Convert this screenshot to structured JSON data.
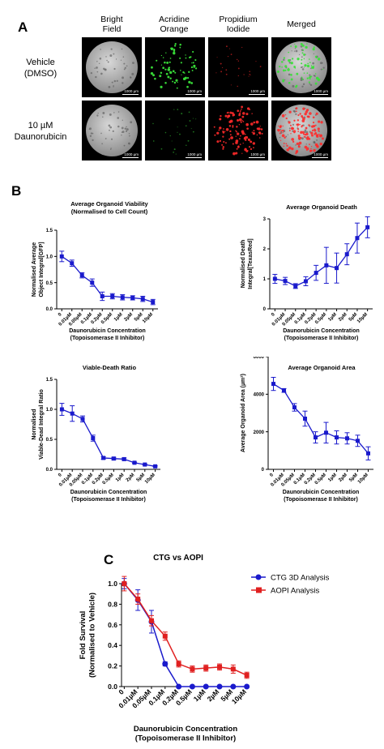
{
  "panel_a": {
    "letter": "A",
    "columns": [
      "Bright\nField",
      "Acridine\nOrange",
      "Propidium\nIodide",
      "Merged"
    ],
    "rows": [
      "Vehicle\n(DMSO)",
      "10 µM\nDaunorubicin"
    ],
    "scale_label": "1000 µm"
  },
  "panel_b": {
    "letter": "B"
  },
  "panel_c": {
    "letter": "C"
  },
  "chart_data": [
    {
      "id": "viability",
      "type": "line",
      "title": "Average Organoid Viability\n(Normalised to Cell Count)",
      "ylabel": "Normalised Average\nObject Integral[GFP]",
      "xlabel": "Daunorubicin Concentration\n(Topoisomerase II Inhibitor)",
      "categories": [
        "0",
        "0.01µM",
        "0.05µM",
        "0.1µM",
        "0.2µM",
        "0.5µM",
        "1µM",
        "2µM",
        "5µM",
        "10µM"
      ],
      "ylim": [
        0,
        1.5
      ],
      "yticks": [
        "0.0",
        "0.5",
        "1.0",
        "1.5"
      ],
      "color": "#1a1acc",
      "series": [
        {
          "values": [
            1.0,
            0.87,
            0.64,
            0.5,
            0.24,
            0.24,
            0.22,
            0.21,
            0.19,
            0.13
          ],
          "errors": [
            0.1,
            0.06,
            0.05,
            0.07,
            0.08,
            0.05,
            0.05,
            0.04,
            0.05,
            0.05
          ]
        }
      ]
    },
    {
      "id": "death",
      "type": "line",
      "title": "Average Organoid Death",
      "ylabel": "Normalised Death\nIntegral[TexasRed]",
      "xlabel": "Daunorubicin Concentration\n(Topoisomerase II Inhibitor)",
      "categories": [
        "0",
        "0.01µM",
        "0.05µM",
        "0.1µM",
        "0.2µM",
        "0.5µM",
        "1µM",
        "2µM",
        "5µM",
        "10µM"
      ],
      "ylim": [
        0,
        3
      ],
      "yticks": [
        "0",
        "1",
        "2",
        "3"
      ],
      "color": "#1a1acc",
      "series": [
        {
          "values": [
            1.0,
            0.93,
            0.76,
            0.92,
            1.2,
            1.45,
            1.36,
            1.82,
            2.36,
            2.72
          ],
          "errors": [
            0.15,
            0.12,
            0.08,
            0.15,
            0.25,
            0.6,
            0.5,
            0.35,
            0.5,
            0.35
          ]
        }
      ]
    },
    {
      "id": "ratio",
      "type": "line",
      "title": "Viable-Death Ratio",
      "ylabel": "Normalised\nViable-Dead Integral Ratio",
      "xlabel": "Daunorubicin Concentration\n(Topoisomerase II Inhibitor)",
      "categories": [
        "0",
        "0.01µM",
        "0.05µM",
        "0.1µM",
        "0.2µM",
        "0.5µM",
        "1µM",
        "2µM",
        "5µM",
        "10µM"
      ],
      "ylim": [
        0,
        1.5
      ],
      "yticks": [
        "0.0",
        "0.5",
        "1.0",
        "1.5"
      ],
      "color": "#1a1acc",
      "series": [
        {
          "values": [
            1.0,
            0.93,
            0.84,
            0.52,
            0.19,
            0.18,
            0.17,
            0.11,
            0.08,
            0.05
          ],
          "errors": [
            0.1,
            0.13,
            0.05,
            0.05,
            0.02,
            0.02,
            0.02,
            0.01,
            0.01,
            0.01
          ]
        }
      ]
    },
    {
      "id": "area",
      "type": "line",
      "title": "Average Organoid Area",
      "ylabel": "Average Organoid Area (µm²)",
      "xlabel": "Daunorubicin Concentration\n(Topoisomerase II Inhibitor)",
      "categories": [
        "0",
        "0.01µM",
        "0.05µM",
        "0.1µM",
        "0.2µM",
        "0.5µM",
        "1µM",
        "2µM",
        "5µM",
        "10µM"
      ],
      "ylim": [
        0,
        6000
      ],
      "yticks": [
        "0",
        "2000",
        "4000",
        "6000"
      ],
      "color": "#1a1acc",
      "series": [
        {
          "values": [
            4550,
            4200,
            3300,
            2700,
            1700,
            1950,
            1700,
            1650,
            1520,
            850
          ],
          "errors": [
            350,
            100,
            200,
            400,
            300,
            550,
            350,
            300,
            300,
            350
          ]
        }
      ]
    },
    {
      "id": "comparison",
      "type": "line",
      "title": "CTG vs AOPI",
      "ylabel": "Fold Survival\n(Normalised to Vehicle)",
      "xlabel": "Daunorubicin Concentration\n(Topoisomerase II Inhibitor)",
      "categories": [
        "0",
        "0.01µM",
        "0.05µM",
        "0.1µM",
        "0.2µM",
        "0.5µM",
        "1µM",
        "2µM",
        "5µM",
        "10µM"
      ],
      "ylim": [
        0,
        1.0
      ],
      "yticks": [
        "0.0",
        "0.2",
        "0.4",
        "0.6",
        "0.8",
        "1.0"
      ],
      "legend": "top-right",
      "series": [
        {
          "name": "CTG 3D Analysis",
          "color": "#1a1acc",
          "values": [
            1.0,
            0.84,
            0.63,
            0.22,
            0.0,
            0.0,
            0.0,
            0.0,
            0.0,
            0.0
          ],
          "errors": [
            0.05,
            0.1,
            0.11,
            0.02,
            0.0,
            0.0,
            0.0,
            0.0,
            0.0,
            0.0
          ]
        },
        {
          "name": "AOPI Analysis",
          "color": "#e02020",
          "values": [
            1.0,
            0.85,
            0.64,
            0.49,
            0.22,
            0.17,
            0.18,
            0.19,
            0.17,
            0.11
          ],
          "errors": [
            0.07,
            0.05,
            0.05,
            0.04,
            0.03,
            0.03,
            0.03,
            0.03,
            0.04,
            0.03
          ]
        }
      ]
    }
  ]
}
